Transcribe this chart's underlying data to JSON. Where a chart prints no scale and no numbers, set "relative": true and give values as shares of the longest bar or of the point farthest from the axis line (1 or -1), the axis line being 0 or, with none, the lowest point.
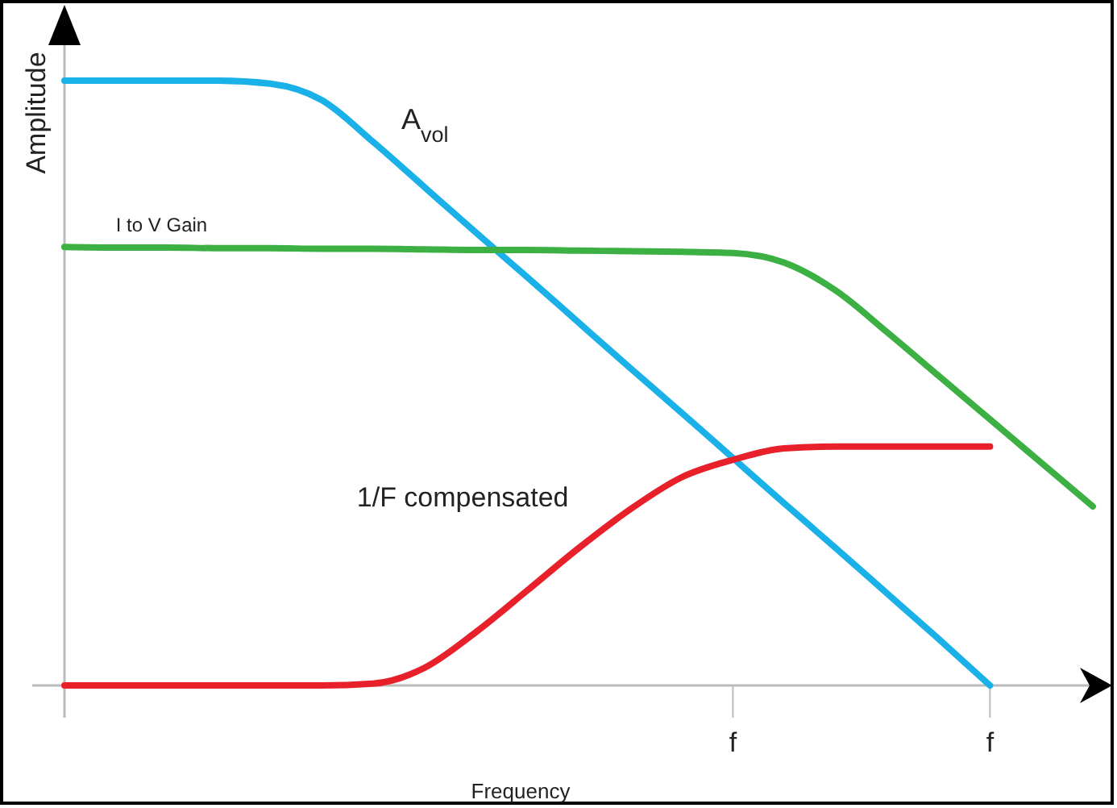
{
  "chart_data": {
    "type": "line",
    "xlabel": "Frequency",
    "ylabel": "Amplitude",
    "relative": true,
    "legend": false,
    "marker": "none",
    "line_style": "solid",
    "categories": [
      null,
      null,
      null,
      null,
      null,
      null,
      null,
      null,
      null,
      null,
      null,
      null,
      null,
      "f",
      null,
      null,
      null,
      null,
      "f",
      null,
      null
    ],
    "series": [
      {
        "name": "A$_{vol}$",
        "color": "#1ab0e8",
        "values": [
          1.0,
          1.0,
          1.0,
          1.0,
          0.995,
          0.968,
          0.899,
          0.824,
          0.749,
          0.675,
          0.6,
          0.525,
          0.451,
          0.376,
          0.301,
          0.227,
          0.152,
          0.077,
          0,
          null,
          null
        ]
      },
      {
        "name": "I to V Gain",
        "color": "#3cb043",
        "values": [
          0.725,
          0.724,
          0.724,
          0.723,
          0.723,
          0.722,
          0.722,
          0.721,
          0.72,
          0.72,
          0.719,
          0.718,
          0.717,
          0.715,
          0.699,
          0.653,
          0.584,
          0.512,
          0.44,
          0.368,
          0.296
        ]
      },
      {
        "name": "1/F compensated",
        "color": "#e8202a",
        "values": [
          0,
          0,
          0,
          0,
          0,
          0,
          0.003,
          0.029,
          0.088,
          0.157,
          0.227,
          0.291,
          0.344,
          0.373,
          0.392,
          0.395,
          0.395,
          0.395,
          0.395,
          null,
          null
        ]
      }
    ]
  }
}
